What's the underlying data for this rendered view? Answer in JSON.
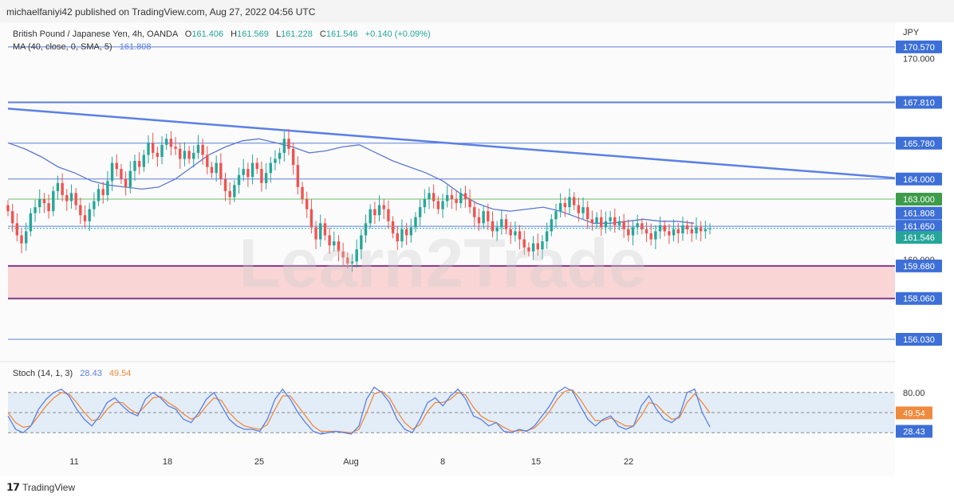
{
  "header": {
    "publisher_text": "michaelfaniyi42 published on TradingView.com, Aug 27, 2022 04:56 UTC"
  },
  "legend": {
    "symbol_line": "British Pound / Japanese Yen, 4h, OANDA",
    "ohlc": [
      {
        "k": "O",
        "v": "161.406"
      },
      {
        "k": "H",
        "v": "161.569"
      },
      {
        "k": "L",
        "v": "161.228"
      },
      {
        "k": "C",
        "v": "161.546"
      }
    ],
    "change": "+0.140 (+0.09%)",
    "ma_label": "MA (40, close, 0, SMA, 5)",
    "ma_value": "161.808",
    "stoch_label": "Stoch (14, 1, 3)",
    "stoch_k": "28.43",
    "stoch_d": "49.54"
  },
  "watermark": "Learn2Trade",
  "footer": {
    "logo_icon": "tradingview-logo-icon",
    "brand": "TradingView"
  },
  "colors": {
    "hline": "#5b7fd6",
    "trendline": "#5b80e6",
    "support_zone": "#f9d5d5",
    "zone_border": "#7c3c8c",
    "ma_line": "#5c78d0",
    "green_line": "#6cbf6c",
    "bull": "#26a69a",
    "bear": "#ef5350",
    "stoch_k": "#5b80e6",
    "stoch_d": "#f08a3c",
    "stoch_band": "#e3edf8",
    "label_blue": "#3d6fd8",
    "label_green": "#3d9b4a",
    "label_orange": "#f08a3c",
    "label_teal": "#26a69a"
  },
  "chart_data": {
    "type": "candlestick",
    "symbol": "GBPJPY",
    "timeframe": "4h",
    "currency_label": "JPY",
    "y_range": [
      155.0,
      171.0
    ],
    "price_ticks": [
      "170.000",
      "160.000"
    ],
    "x_ticks": [
      "11",
      "18",
      "25",
      "Aug",
      "8",
      "15",
      "22"
    ],
    "horizontal_levels": [
      {
        "value": 170.57,
        "label": "170.570",
        "color": "label_blue"
      },
      {
        "value": 167.81,
        "label": "167.810",
        "color": "label_blue"
      },
      {
        "value": 165.78,
        "label": "165.780",
        "color": "label_blue"
      },
      {
        "value": 164.0,
        "label": "164.000",
        "color": "label_blue"
      },
      {
        "value": 161.65,
        "label": "161.650",
        "color": "label_blue"
      },
      {
        "value": 159.68,
        "label": "159.680",
        "color": "label_blue"
      },
      {
        "value": 158.06,
        "label": "158.060",
        "color": "label_blue"
      },
      {
        "value": 156.03,
        "label": "156.030",
        "color": "label_blue"
      }
    ],
    "resistance_line_value": 163.0,
    "resistance_line_label": "163.000",
    "ma_value_label": "161.808",
    "last_price_label": "161.546",
    "support_zone": [
      158.06,
      159.68
    ],
    "trendline": {
      "from": [
        0,
        167.5
      ],
      "to": [
        187,
        164.05
      ]
    },
    "closes": [
      162.4,
      161.8,
      161.2,
      160.8,
      161.4,
      162.3,
      162.6,
      163.0,
      162.8,
      162.4,
      163.4,
      163.8,
      163.2,
      162.9,
      163.3,
      162.7,
      162.2,
      161.9,
      162.5,
      162.9,
      163.5,
      163.2,
      163.9,
      164.8,
      164.5,
      164.0,
      163.6,
      164.4,
      164.9,
      164.6,
      165.2,
      165.8,
      165.3,
      165.1,
      165.7,
      166.0,
      165.6,
      165.5,
      165.0,
      165.4,
      165.0,
      165.3,
      165.7,
      165.2,
      164.6,
      164.3,
      164.8,
      164.0,
      163.4,
      163.1,
      163.7,
      164.2,
      164.5,
      164.1,
      164.8,
      164.5,
      163.8,
      164.3,
      164.8,
      165.0,
      165.3,
      166.0,
      165.5,
      164.7,
      163.6,
      163.0,
      162.5,
      161.6,
      161.0,
      161.8,
      161.2,
      160.7,
      160.9,
      160.4,
      160.1,
      159.8,
      159.9,
      160.5,
      161.2,
      161.8,
      162.5,
      162.2,
      162.7,
      162.5,
      161.9,
      161.3,
      160.9,
      161.5,
      161.2,
      161.6,
      162.1,
      162.6,
      163.0,
      163.3,
      162.9,
      162.5,
      162.9,
      163.2,
      163.0,
      162.8,
      163.3,
      163.0,
      162.6,
      162.1,
      161.8,
      162.4,
      161.9,
      161.4,
      161.6,
      162.0,
      161.5,
      161.2,
      161.4,
      161.0,
      160.6,
      160.4,
      160.8,
      160.5,
      160.9,
      161.4,
      162.0,
      162.4,
      162.8,
      162.6,
      163.1,
      162.7,
      162.3,
      162.6,
      162.0,
      161.8,
      162.1,
      161.6,
      161.9,
      162.1,
      161.7,
      161.9,
      161.5,
      161.2,
      161.6,
      161.8,
      161.5,
      161.3,
      161.0,
      161.4,
      161.7,
      161.4,
      161.2,
      161.5,
      161.3,
      161.7,
      161.5,
      161.3,
      161.6,
      161.4,
      161.5,
      161.546
    ],
    "ma_values": [
      165.8,
      165.5,
      165.1,
      164.6,
      164.3,
      163.9,
      163.7,
      163.6,
      163.5,
      163.6,
      164.0,
      164.6,
      165.2,
      165.6,
      165.9,
      166.0,
      165.8,
      165.6,
      165.3,
      165.4,
      165.6,
      165.7,
      165.3,
      164.9,
      164.6,
      164.3,
      163.9,
      163.3,
      162.8,
      162.5,
      162.4,
      162.5,
      162.6,
      162.4,
      162.1,
      161.8,
      161.8,
      161.9,
      162.0,
      161.9,
      161.9,
      161.8
    ],
    "stoch_k": [
      45,
      25,
      20,
      30,
      55,
      70,
      80,
      85,
      75,
      55,
      40,
      30,
      45,
      65,
      72,
      60,
      50,
      45,
      70,
      80,
      72,
      60,
      55,
      40,
      35,
      50,
      70,
      80,
      60,
      40,
      30,
      25,
      25,
      22,
      40,
      70,
      85,
      70,
      50,
      35,
      22,
      18,
      20,
      22,
      20,
      18,
      30,
      70,
      88,
      80,
      65,
      40,
      25,
      20,
      40,
      65,
      72,
      60,
      75,
      85,
      70,
      45,
      40,
      30,
      35,
      22,
      20,
      25,
      22,
      30,
      45,
      60,
      80,
      88,
      82,
      60,
      40,
      30,
      40,
      45,
      30,
      25,
      30,
      60,
      75,
      55,
      40,
      35,
      45,
      80,
      85,
      50,
      28.43
    ],
    "stoch_d": [
      50,
      35,
      28,
      30,
      45,
      60,
      72,
      80,
      78,
      65,
      50,
      38,
      40,
      55,
      65,
      65,
      55,
      48,
      60,
      72,
      74,
      65,
      58,
      48,
      40,
      45,
      60,
      72,
      68,
      50,
      38,
      30,
      27,
      25,
      32,
      55,
      75,
      75,
      60,
      45,
      30,
      22,
      22,
      22,
      21,
      20,
      25,
      50,
      78,
      82,
      72,
      52,
      35,
      25,
      32,
      52,
      65,
      65,
      70,
      80,
      76,
      58,
      45,
      38,
      35,
      28,
      22,
      23,
      23,
      27,
      38,
      52,
      70,
      82,
      84,
      70,
      52,
      38,
      38,
      42,
      36,
      30,
      30,
      45,
      65,
      62,
      50,
      40,
      42,
      65,
      78,
      65,
      49.54
    ],
    "stoch_levels": [
      80,
      50,
      20
    ],
    "stoch_axis_labels": [
      "80.00"
    ]
  }
}
